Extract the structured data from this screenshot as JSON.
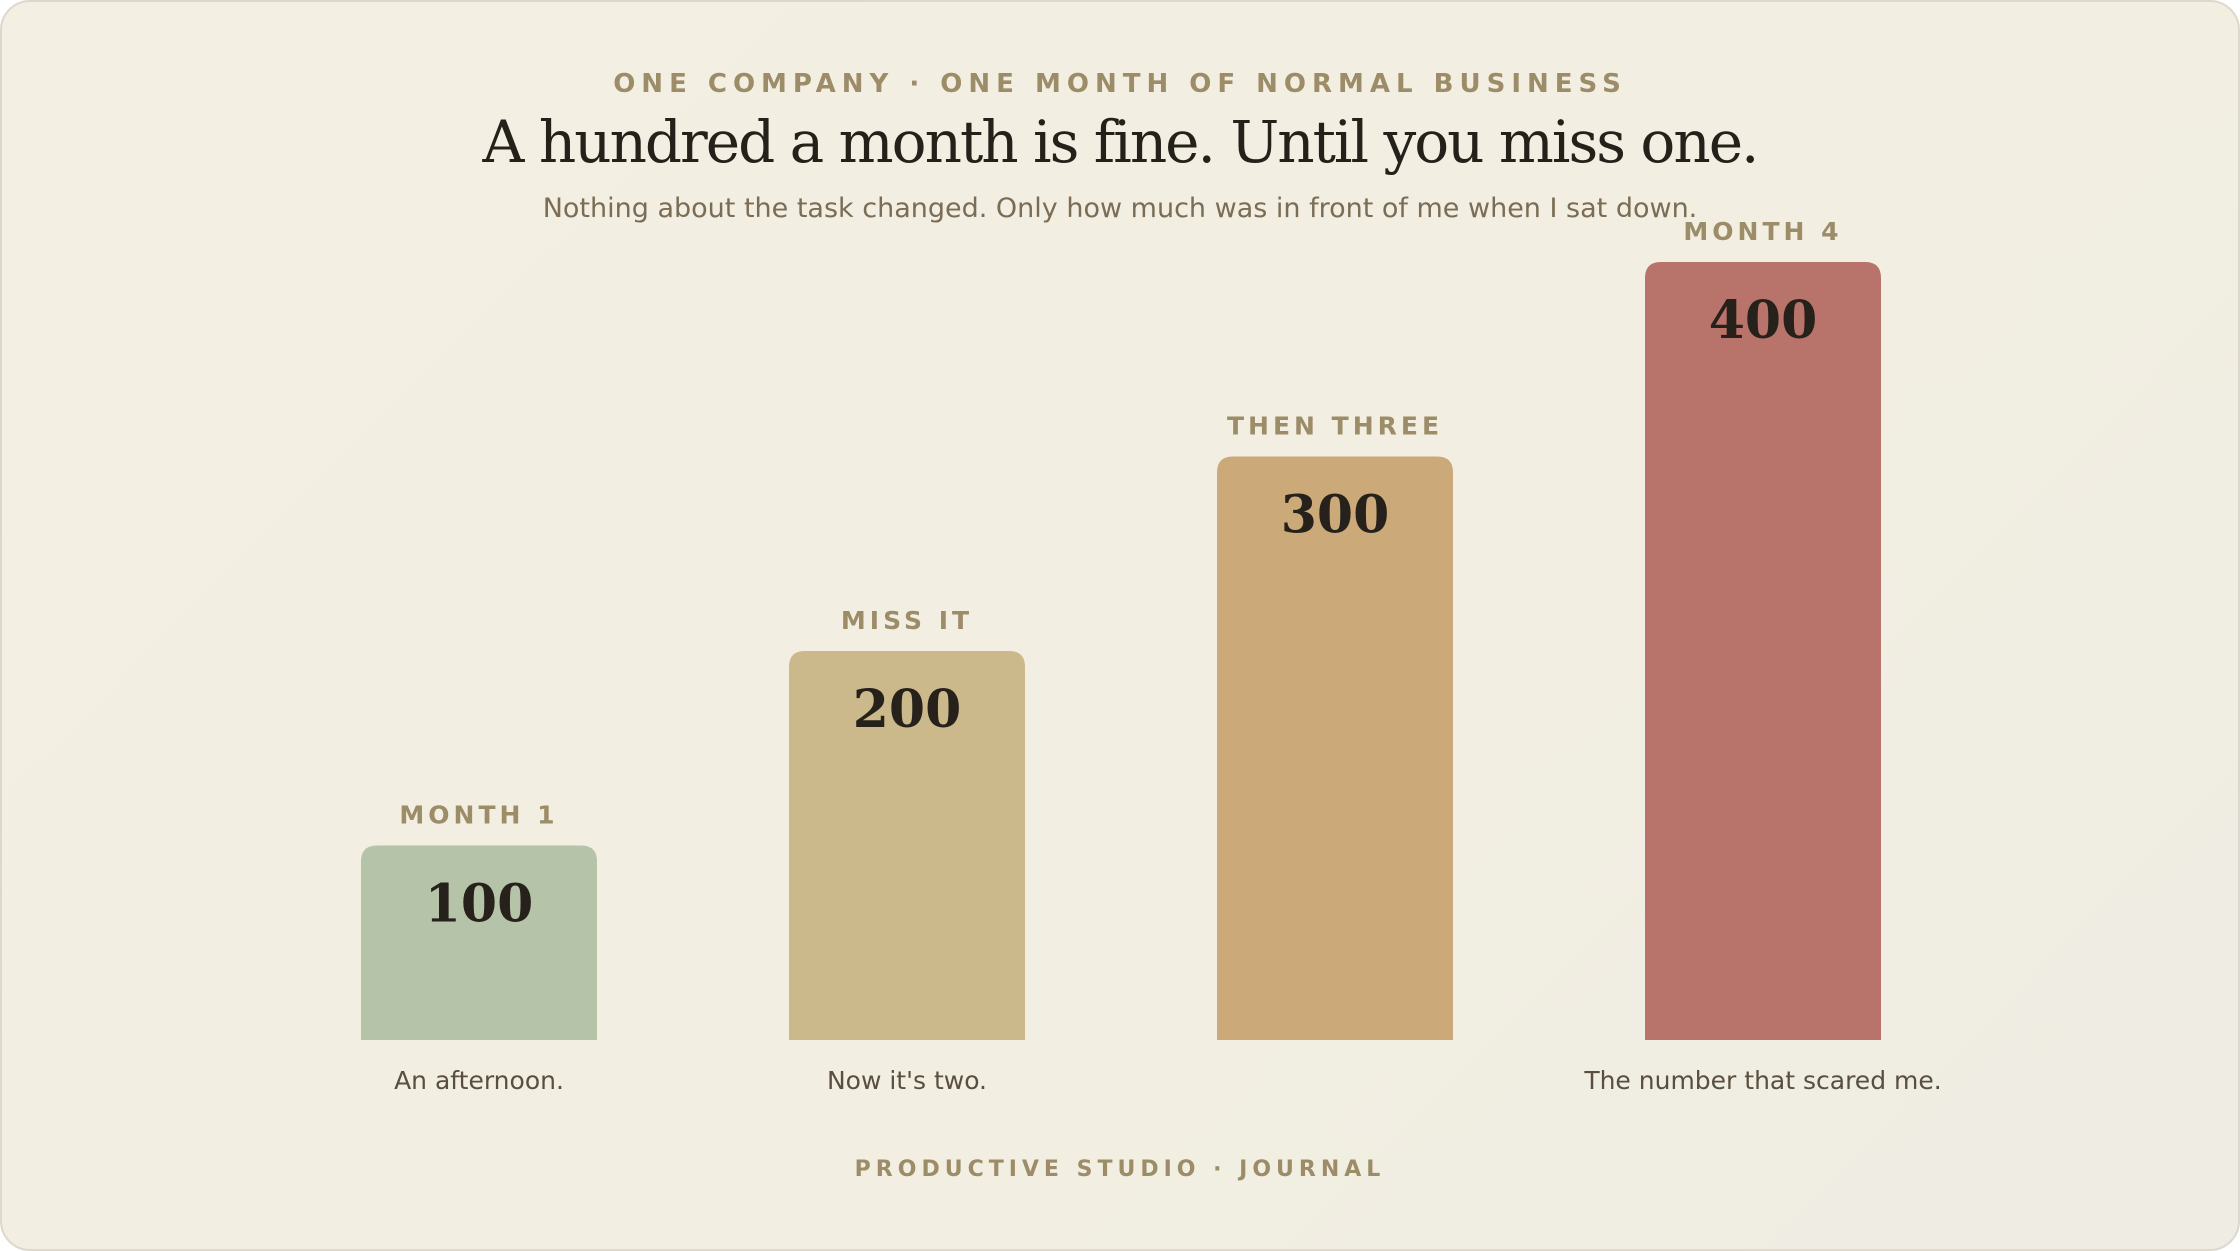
{
  "header": {
    "eyebrow": "ONE COMPANY · ONE MONTH OF NORMAL BUSINESS",
    "title": "A hundred a month is fine. Until you miss one.",
    "subtitle": "Nothing about the task changed. Only how much was in front of me when I sat down."
  },
  "footer": {
    "text": "PRODUCTIVE STUDIO · JOURNAL"
  },
  "chart_data": {
    "type": "bar",
    "title": "A hundred a month is fine. Until you miss one.",
    "subtitle": "Nothing about the task changed. Only how much was in front of me when I sat down.",
    "categories": [
      "MONTH 1",
      "MISS IT",
      "THEN THREE",
      "MONTH 4"
    ],
    "values": [
      100,
      200,
      300,
      400
    ],
    "value_labels": [
      "100",
      "200",
      "300",
      "400"
    ],
    "captions": [
      "An afternoon.",
      "Now it's two.",
      "",
      "The number that scared me."
    ],
    "colors": [
      "#b5c3a8",
      "#cbb98b",
      "#cba979",
      "#b8736a"
    ],
    "xlabel": "",
    "ylabel": "",
    "ylim": [
      0,
      400
    ],
    "grid": false,
    "legend": "none"
  }
}
